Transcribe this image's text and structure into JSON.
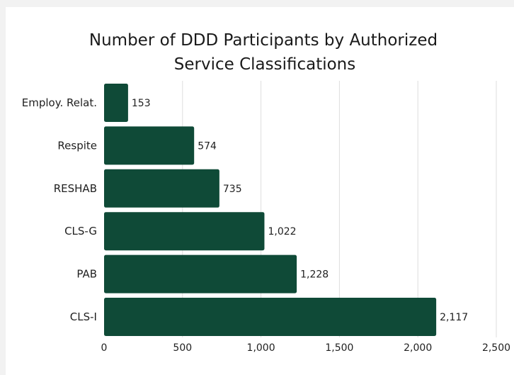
{
  "chart_data": {
    "type": "bar",
    "orientation": "horizontal",
    "title": "Number of DDD Participants by Authorized Service Classifications",
    "title_lines": [
      "Number of DDD Participants by Authorized",
      "Service Classifications"
    ],
    "categories": [
      "Employ. Relat.",
      "Respite",
      "RESHAB",
      "CLS-G",
      "PAB",
      "CLS-I"
    ],
    "values": [
      153,
      574,
      735,
      1022,
      1228,
      2117
    ],
    "value_labels": [
      "153",
      "574",
      "735",
      "1,022",
      "1,228",
      "2,117"
    ],
    "xlim": [
      0,
      2500
    ],
    "x_ticks": [
      0,
      500,
      1000,
      1500,
      2000,
      2500
    ],
    "x_tick_labels": [
      "0",
      "500",
      "1,000",
      "1,500",
      "2,000",
      "2,500"
    ],
    "xlabel": "",
    "ylabel": "",
    "grid": "vertical",
    "legend": "none",
    "bar_color": "#0f4a37",
    "grid_color": "#dddddd"
  }
}
